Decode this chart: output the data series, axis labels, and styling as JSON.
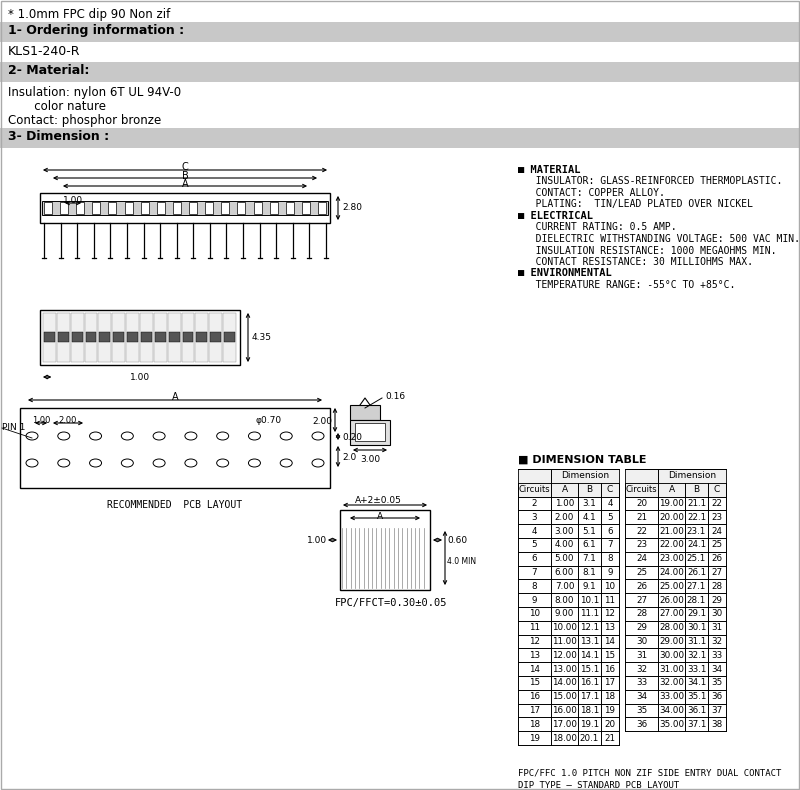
{
  "white": "#ffffff",
  "gray_header": "#c8c8c8",
  "gray_light": "#e8e8e8",
  "line1": "* 1.0mm FPC dip 90 Non zif",
  "section1_title": "1- Ordering information :",
  "section1_content": "KLS1-240-R",
  "section2_title": "2- Material:",
  "section2_lines": [
    "Insulation: nylon 6T UL 94V-0",
    "       color nature",
    "Contact: phosphor bronze"
  ],
  "section3_title": "3- Dimension :",
  "material_block": [
    [
      "bold",
      "■ MATERIAL"
    ],
    [
      "normal",
      "   INSULATOR: GLASS-REINFORCED THERMOPLASTIC."
    ],
    [
      "normal",
      "   CONTACT: COPPER ALLOY."
    ],
    [
      "normal",
      "   PLATING:  TIN/LEAD PLATED OVER NICKEL"
    ],
    [
      "bold",
      "■ ELECTRICAL"
    ],
    [
      "normal",
      "   CURRENT RATING: 0.5 AMP."
    ],
    [
      "normal",
      "   DIELECTRIC WITHSTANDING VOLTAGE: 500 VAC MIN."
    ],
    [
      "normal",
      "   INSULATION RESISTANCE: 1000 MEGAOHMS MIN."
    ],
    [
      "normal",
      "   CONTACT RESISTANCE: 30 MILLIOHMS MAX."
    ],
    [
      "bold",
      "■ ENVIRONMENTAL"
    ],
    [
      "normal",
      "   TEMPERATURE RANGE: -55°C TO +85°C."
    ]
  ],
  "dim_table_title": "■ DIMENSION TABLE",
  "table_left_rows": [
    [
      2,
      "1.00",
      "3.1",
      4
    ],
    [
      3,
      "2.00",
      "4.1",
      5
    ],
    [
      4,
      "3.00",
      "5.1",
      6
    ],
    [
      5,
      "4.00",
      "6.1",
      7
    ],
    [
      6,
      "5.00",
      "7.1",
      8
    ],
    [
      7,
      "6.00",
      "8.1",
      9
    ],
    [
      8,
      "7.00",
      "9.1",
      10
    ],
    [
      9,
      "8.00",
      "10.1",
      11
    ],
    [
      10,
      "9.00",
      "11.1",
      12
    ],
    [
      11,
      "10.00",
      "12.1",
      13
    ],
    [
      12,
      "11.00",
      "13.1",
      14
    ],
    [
      13,
      "12.00",
      "14.1",
      15
    ],
    [
      14,
      "13.00",
      "15.1",
      16
    ],
    [
      15,
      "14.00",
      "16.1",
      17
    ],
    [
      16,
      "15.00",
      "17.1",
      18
    ],
    [
      17,
      "16.00",
      "18.1",
      19
    ],
    [
      18,
      "17.00",
      "19.1",
      20
    ],
    [
      19,
      "18.00",
      "20.1",
      21
    ]
  ],
  "table_right_rows": [
    [
      20,
      "19.00",
      "21.1",
      22
    ],
    [
      21,
      "20.00",
      "22.1",
      23
    ],
    [
      22,
      "21.00",
      "23.1",
      24
    ],
    [
      23,
      "22.00",
      "24.1",
      25
    ],
    [
      24,
      "23.00",
      "25.1",
      26
    ],
    [
      25,
      "24.00",
      "26.1",
      27
    ],
    [
      26,
      "25.00",
      "27.1",
      28
    ],
    [
      27,
      "26.00",
      "28.1",
      29
    ],
    [
      28,
      "27.00",
      "29.1",
      30
    ],
    [
      29,
      "28.00",
      "30.1",
      31
    ],
    [
      30,
      "29.00",
      "31.1",
      32
    ],
    [
      31,
      "30.00",
      "32.1",
      33
    ],
    [
      32,
      "31.00",
      "33.1",
      34
    ],
    [
      33,
      "32.00",
      "34.1",
      35
    ],
    [
      34,
      "33.00",
      "35.1",
      36
    ],
    [
      35,
      "34.00",
      "36.1",
      37
    ],
    [
      36,
      "35.00",
      "37.1",
      38
    ]
  ],
  "footer_text1": "FPC/FFC 1.0 PITCH NON ZIF SIDE ENTRY DUAL CONTACT",
  "footer_text2": "DIP TYPE – STANDARD PCB LAYOUT",
  "fpc_label": "FPC/FFCT=0.30±0.05",
  "pcb_label": "RECOMMENDED  PCB LAYOUT"
}
